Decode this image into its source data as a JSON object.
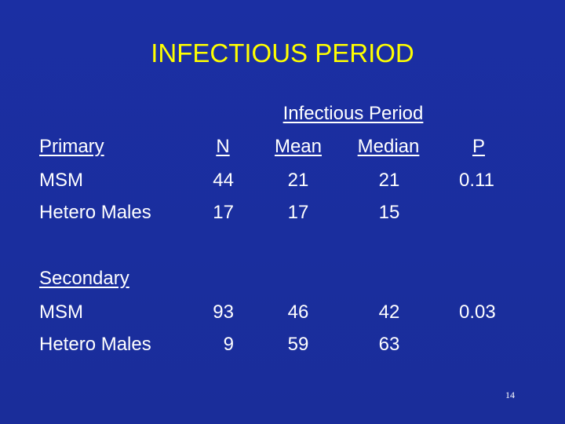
{
  "title": "INFECTIOUS PERIOD",
  "group_header": "Infectious Period",
  "columns": {
    "primary": "Primary",
    "n": "N",
    "mean": "Mean",
    "median": "Median",
    "p": "P"
  },
  "primary_rows": [
    {
      "label": "MSM",
      "n": "44",
      "mean": "21",
      "median": "21",
      "p": "0.11"
    },
    {
      "label": "Hetero Males",
      "n": "17",
      "mean": "17",
      "median": "15",
      "p": ""
    }
  ],
  "secondary_header": "Secondary",
  "secondary_rows": [
    {
      "label": "MSM",
      "n": "93",
      "mean": "46",
      "median": "42",
      "p": "0.03"
    },
    {
      "label": "Hetero Males",
      "n": "9",
      "mean": "59",
      "median": "63",
      "p": ""
    }
  ],
  "page_number": "14"
}
